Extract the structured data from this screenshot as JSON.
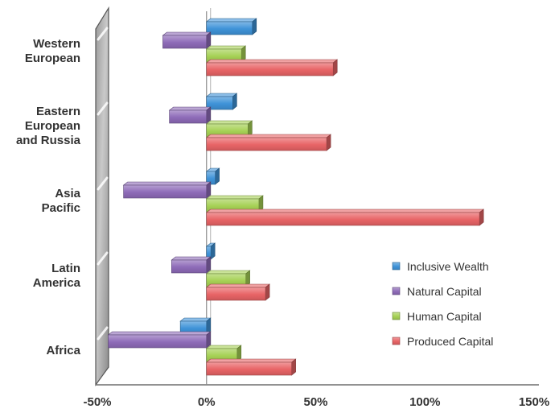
{
  "chart_data": {
    "type": "bar",
    "orientation": "horizontal",
    "categories": [
      [
        "Western",
        "European"
      ],
      [
        "Eastern",
        "European",
        "and Russia"
      ],
      [
        "Asia",
        "Pacific"
      ],
      [
        "Latin",
        "America"
      ],
      [
        "Africa"
      ]
    ],
    "series": [
      {
        "name": "Inclusive Wealth",
        "color": "#3f93d8",
        "values": [
          21,
          12,
          4,
          2,
          -12
        ]
      },
      {
        "name": "Natural Capital",
        "color": "#8e6bb8",
        "values": [
          -20,
          -17,
          -38,
          -16,
          -45
        ]
      },
      {
        "name": "Human Capital",
        "color": "#a6d155",
        "values": [
          16,
          19,
          24,
          18,
          14
        ]
      },
      {
        "name": "Produced Capital",
        "color": "#e86466",
        "values": [
          58,
          55,
          125,
          27,
          39
        ]
      }
    ],
    "xlim": [
      -50,
      150
    ],
    "xticks": [
      {
        "value": -50,
        "label": "-50%"
      },
      {
        "value": 0,
        "label": "0%"
      },
      {
        "value": 50,
        "label": "50%"
      },
      {
        "value": 100,
        "label": "100%"
      },
      {
        "value": 150,
        "label": "150%"
      }
    ],
    "legend_position": "right",
    "grid": false,
    "three_d": true
  }
}
